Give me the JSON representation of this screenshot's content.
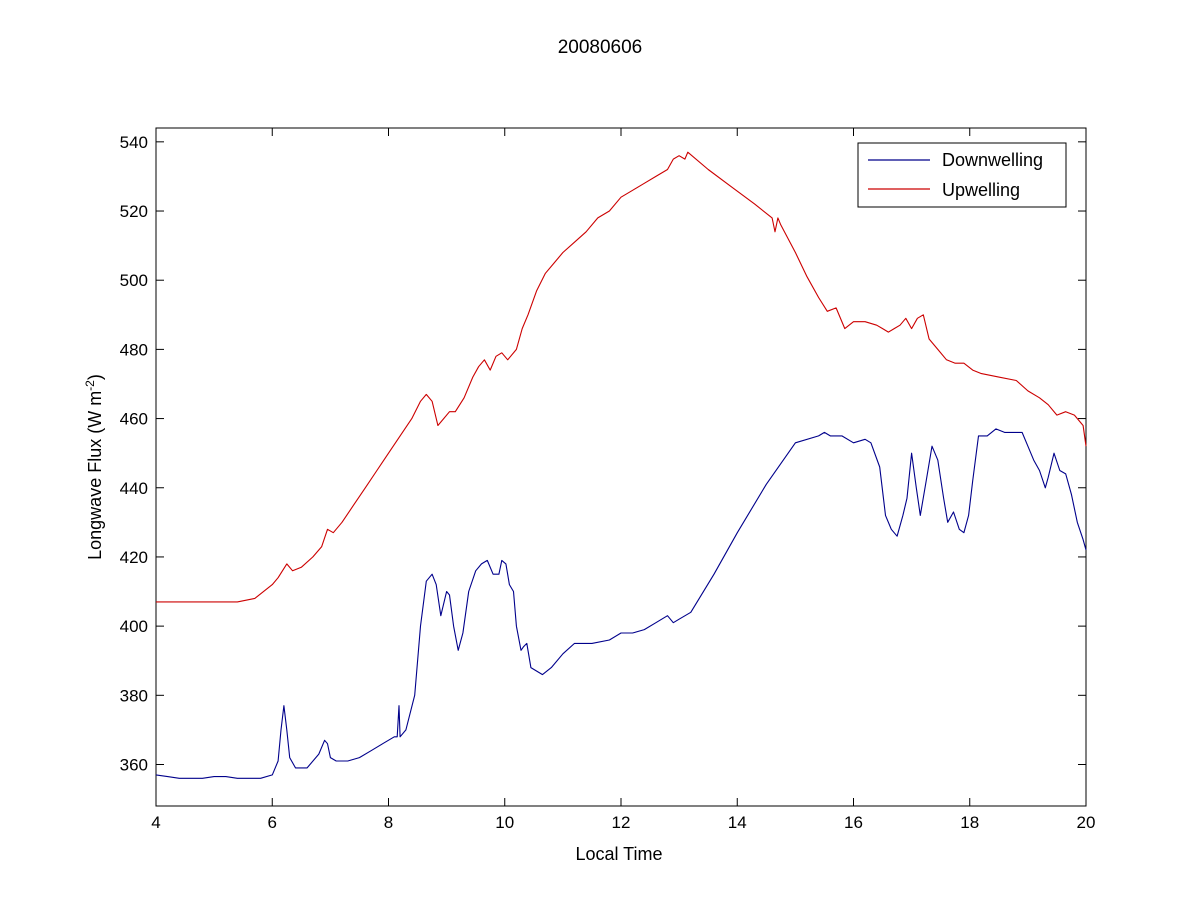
{
  "chart_data": {
    "type": "line",
    "title": "20080606",
    "xlabel": "Local Time",
    "ylabel": "Longwave Flux (W m",
    "ylabel_sup": "-2",
    "ylabel_close": ")",
    "xlim": [
      4,
      20
    ],
    "ylim": [
      348,
      544
    ],
    "xticks": [
      4,
      6,
      8,
      10,
      12,
      14,
      16,
      18,
      20
    ],
    "yticks": [
      360,
      380,
      400,
      420,
      440,
      460,
      480,
      500,
      520,
      540
    ],
    "grid": false,
    "legend_position": "top-right",
    "series": [
      {
        "name": "Downwelling",
        "color": "#00008b",
        "x": [
          4.0,
          4.2,
          4.4,
          4.6,
          4.8,
          5.0,
          5.2,
          5.4,
          5.6,
          5.8,
          6.0,
          6.1,
          6.15,
          6.2,
          6.25,
          6.3,
          6.4,
          6.5,
          6.6,
          6.8,
          6.9,
          6.95,
          7.0,
          7.1,
          7.3,
          7.5,
          7.7,
          7.9,
          8.1,
          8.15,
          8.18,
          8.2,
          8.3,
          8.45,
          8.55,
          8.65,
          8.75,
          8.82,
          8.9,
          9.0,
          9.05,
          9.12,
          9.2,
          9.28,
          9.38,
          9.5,
          9.6,
          9.7,
          9.8,
          9.9,
          9.95,
          10.02,
          10.08,
          10.15,
          10.2,
          10.28,
          10.32,
          10.38,
          10.45,
          10.55,
          10.65,
          10.8,
          11.0,
          11.2,
          11.5,
          11.8,
          12.0,
          12.2,
          12.4,
          12.6,
          12.8,
          12.9,
          13.0,
          13.2,
          13.6,
          14.0,
          14.5,
          15.0,
          15.4,
          15.5,
          15.6,
          15.8,
          16.0,
          16.2,
          16.3,
          16.45,
          16.55,
          16.65,
          16.75,
          16.85,
          16.92,
          17.0,
          17.08,
          17.15,
          17.25,
          17.35,
          17.45,
          17.55,
          17.62,
          17.72,
          17.82,
          17.9,
          17.98,
          18.05,
          18.15,
          18.3,
          18.45,
          18.6,
          18.75,
          18.9,
          19.0,
          19.1,
          19.2,
          19.3,
          19.35,
          19.45,
          19.55,
          19.65,
          19.75,
          19.85,
          19.95,
          20.0
        ],
        "values": [
          357,
          356.5,
          356,
          356,
          356,
          356.5,
          356.5,
          356,
          356,
          356,
          357,
          361,
          370,
          377,
          370,
          362,
          359,
          359,
          359,
          363,
          367,
          366,
          362,
          361,
          361,
          362,
          364,
          366,
          368,
          368,
          377,
          368,
          370,
          380,
          400,
          413,
          415,
          412,
          403,
          410,
          409,
          400,
          393,
          398,
          410,
          416,
          418,
          419,
          415,
          415,
          419,
          418,
          412,
          410,
          400,
          393,
          394,
          395,
          388,
          387,
          386,
          388,
          392,
          395,
          395,
          396,
          398,
          398,
          399,
          401,
          403,
          401,
          402,
          404,
          415,
          427,
          441,
          453,
          455,
          456,
          455,
          455,
          453,
          454,
          453,
          446,
          432,
          428,
          426,
          432,
          437,
          450,
          440,
          432,
          442,
          452,
          448,
          437,
          430,
          433,
          428,
          427,
          432,
          442,
          455,
          455,
          457,
          456,
          456,
          456,
          452,
          448,
          445,
          440,
          443,
          450,
          445,
          444,
          438,
          430,
          425,
          422
        ]
      },
      {
        "name": "Upwelling",
        "color": "#cc0000",
        "x": [
          4.0,
          4.3,
          4.6,
          5.0,
          5.4,
          5.7,
          6.0,
          6.1,
          6.25,
          6.35,
          6.5,
          6.7,
          6.85,
          6.95,
          7.05,
          7.2,
          7.4,
          7.6,
          7.8,
          8.0,
          8.2,
          8.4,
          8.55,
          8.65,
          8.75,
          8.85,
          8.95,
          9.05,
          9.15,
          9.3,
          9.45,
          9.55,
          9.65,
          9.75,
          9.85,
          9.95,
          10.05,
          10.2,
          10.3,
          10.4,
          10.55,
          10.7,
          10.85,
          11.0,
          11.2,
          11.4,
          11.6,
          11.8,
          12.0,
          12.2,
          12.4,
          12.6,
          12.8,
          12.9,
          13.0,
          13.1,
          13.15,
          13.5,
          13.9,
          14.3,
          14.6,
          14.65,
          14.7,
          14.75,
          15.0,
          15.2,
          15.4,
          15.55,
          15.7,
          15.85,
          16.0,
          16.2,
          16.4,
          16.5,
          16.6,
          16.7,
          16.8,
          16.9,
          17.0,
          17.1,
          17.2,
          17.3,
          17.45,
          17.6,
          17.75,
          17.9,
          18.05,
          18.2,
          18.5,
          18.8,
          19.0,
          19.2,
          19.35,
          19.5,
          19.65,
          19.8,
          19.95,
          20.0
        ],
        "values": [
          407,
          407,
          407,
          407,
          407,
          408,
          412,
          414,
          418,
          416,
          417,
          420,
          423,
          428,
          427,
          430,
          435,
          440,
          445,
          450,
          455,
          460,
          465,
          467,
          465,
          458,
          460,
          462,
          462,
          466,
          472,
          475,
          477,
          474,
          478,
          479,
          477,
          480,
          486,
          490,
          497,
          502,
          505,
          508,
          511,
          514,
          518,
          520,
          524,
          526,
          528,
          530,
          532,
          535,
          536,
          535,
          537,
          532,
          527,
          522,
          518,
          514,
          518,
          516,
          508,
          501,
          495,
          491,
          492,
          486,
          488,
          488,
          487,
          486,
          485,
          486,
          487,
          489,
          486,
          489,
          490,
          483,
          480,
          477,
          476,
          476,
          474,
          473,
          472,
          471,
          468,
          466,
          464,
          461,
          462,
          461,
          458,
          452
        ]
      }
    ]
  }
}
